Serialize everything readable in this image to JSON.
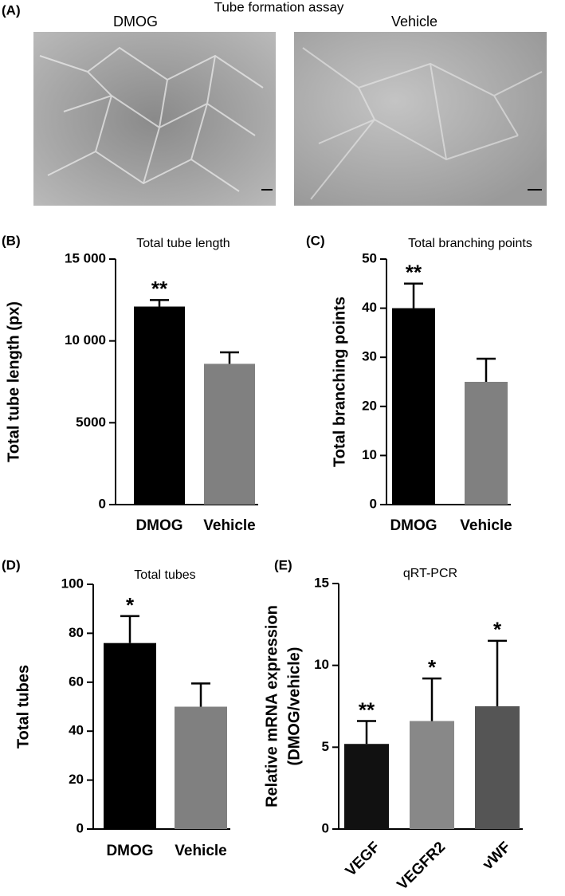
{
  "figure": {
    "panel": "(A)",
    "title": "Tube formation assay",
    "left_label": "DMOG",
    "right_label": "Vehicle"
  },
  "chart_data": [
    {
      "type": "bar",
      "panel": "(B)",
      "title": "Total tube length",
      "ylabel": [
        "Total tube length (px)"
      ],
      "categories": [
        "DMOG",
        "Vehicle"
      ],
      "values": [
        12100,
        8600
      ],
      "errors": [
        400,
        700
      ],
      "colors": [
        "#000000",
        "#808080"
      ],
      "significance": [
        "**",
        null
      ],
      "ylim": [
        0,
        15000
      ],
      "yticks": [
        0,
        5000,
        {
          "value": 10000,
          "label": "10 000"
        },
        {
          "value": 15000,
          "label": "15 000"
        }
      ]
    },
    {
      "type": "bar",
      "panel": "(C)",
      "title": "Total branching points",
      "ylabel": [
        "Total branching points"
      ],
      "categories": [
        "DMOG",
        "Vehicle"
      ],
      "values": [
        40,
        25
      ],
      "errors": [
        5,
        4.7
      ],
      "colors": [
        "#000000",
        "#808080"
      ],
      "significance": [
        "**",
        null
      ],
      "ylim": [
        0,
        50
      ],
      "yticks": [
        0,
        10,
        20,
        30,
        40,
        50
      ]
    },
    {
      "type": "bar",
      "panel": "(D)",
      "title": "Total tubes",
      "ylabel": [
        "Total tubes"
      ],
      "categories": [
        "DMOG",
        "Vehicle"
      ],
      "values": [
        76,
        50
      ],
      "errors": [
        11,
        9.5
      ],
      "colors": [
        "#000000",
        "#808080"
      ],
      "significance": [
        "*",
        null
      ],
      "ylim": [
        0,
        100
      ],
      "yticks": [
        0,
        20,
        40,
        60,
        80,
        100
      ]
    },
    {
      "type": "bar",
      "panel": "(E)",
      "title": "qRT-PCR",
      "ylabel": [
        "Relative mRNA expression",
        "(DMOG/vehicle)"
      ],
      "categories": [
        "VEGF",
        "VEGFR2",
        "vWF"
      ],
      "values": [
        5.2,
        6.6,
        7.5
      ],
      "errors": [
        1.4,
        2.6,
        4.0
      ],
      "colors": [
        "#111111",
        "#888888",
        "#555555"
      ],
      "significance": [
        "**",
        "*",
        "*"
      ],
      "ylim": [
        0,
        15
      ],
      "yticks": [
        0,
        5,
        10,
        15
      ]
    }
  ]
}
